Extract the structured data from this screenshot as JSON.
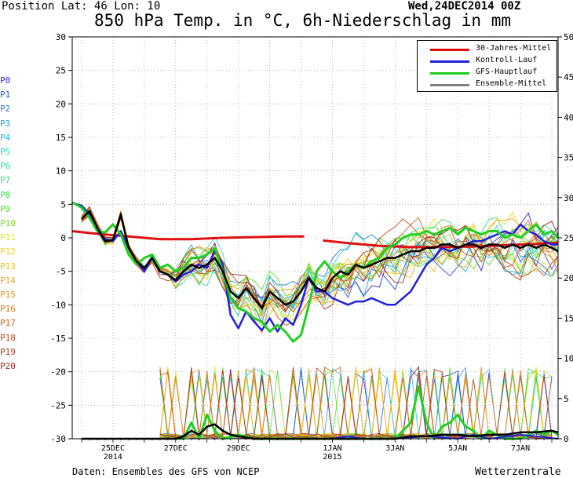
{
  "header": {
    "position": "Position  Lat: 46 Lon: 10",
    "datetime": "Wed,24DEC2014 00Z",
    "title": "850 hPa Temp. in °C, 6h-Niederschlag in mm"
  },
  "footer": {
    "source": "Daten: Ensembles des GFS von NCEP",
    "credit": "Wetterzentrale"
  },
  "members": [
    {
      "label": "P0",
      "color": "#3b1fd6"
    },
    {
      "label": "P1",
      "color": "#2a55e0"
    },
    {
      "label": "P2",
      "color": "#1f7fe0"
    },
    {
      "label": "P3",
      "color": "#1fa6e0"
    },
    {
      "label": "P4",
      "color": "#1fc2d8"
    },
    {
      "label": "P5",
      "color": "#2fd6c8"
    },
    {
      "label": "P6",
      "color": "#2fdca0"
    },
    {
      "label": "P7",
      "color": "#36e07a"
    },
    {
      "label": "P8",
      "color": "#3ee050"
    },
    {
      "label": "P9",
      "color": "#5be02a"
    },
    {
      "label": "P10",
      "color": "#7ee01c"
    },
    {
      "label": "P11",
      "color": "#e8e01c"
    },
    {
      "label": "P12",
      "color": "#f2d21c"
    },
    {
      "label": "P13",
      "color": "#f2bf1c"
    },
    {
      "label": "P14",
      "color": "#f0a81c"
    },
    {
      "label": "P15",
      "color": "#ee921c"
    },
    {
      "label": "P16",
      "color": "#e6781c"
    },
    {
      "label": "P17",
      "color": "#d8601c"
    },
    {
      "label": "P18",
      "color": "#c84a1c"
    },
    {
      "label": "P19",
      "color": "#b03a1c"
    },
    {
      "label": "P20",
      "color": "#a02a1c"
    }
  ],
  "chart_data": {
    "type": "line",
    "x_unit": "days since 24DEC2014 00Z",
    "xlim": [
      -0.3,
      15.2
    ],
    "ylabel_left": "°C",
    "ylabel_right": "mm",
    "ylim_left": [
      -30,
      30
    ],
    "ylim_right": [
      0,
      50
    ],
    "left_ticks": [
      30,
      25,
      20,
      15,
      10,
      5,
      0,
      -5,
      -10,
      -15,
      -20,
      -25,
      -30
    ],
    "right_ticks": [
      50,
      45,
      40,
      35,
      30,
      25,
      20,
      15,
      10,
      5,
      0
    ],
    "x_tick_labels": [
      {
        "day": 1,
        "line1": "25DEC",
        "line2": "2014"
      },
      {
        "day": 3,
        "line1": "27DEC",
        "line2": ""
      },
      {
        "day": 5,
        "line1": "29DEC",
        "line2": ""
      },
      {
        "day": 8,
        "line1": "1JAN",
        "line2": "2015"
      },
      {
        "day": 10,
        "line1": "3JAN",
        "line2": ""
      },
      {
        "day": 12,
        "line1": "5JAN",
        "line2": ""
      },
      {
        "day": 14,
        "line1": "7JAN",
        "line2": ""
      }
    ],
    "grid": true,
    "legend_position": "top-right",
    "legend": [
      {
        "name": "30-Jahres-Mittel",
        "color": "#e01010"
      },
      {
        "name": "Kontroll-Lauf",
        "color": "#2020e0"
      },
      {
        "name": "GFS-Hauptlauf",
        "color": "#20d020"
      },
      {
        "name": "Ensemble-Mittel",
        "color": "#808080"
      }
    ],
    "temperature_series": [
      {
        "name": "30-Jahres-Mittel",
        "color": "#e01010",
        "width": 3,
        "segments": [
          [
            [
              -0.3,
              1.0
            ],
            [
              0.5,
              0.6
            ],
            [
              1.5,
              0.2
            ],
            [
              2.5,
              -0.2
            ],
            [
              3.5,
              -0.2
            ],
            [
              4.5,
              0.0
            ],
            [
              5.5,
              0.1
            ],
            [
              6.5,
              0.2
            ],
            [
              7.1,
              0.2
            ]
          ],
          [
            [
              7.7,
              -0.4
            ],
            [
              8.5,
              -0.8
            ],
            [
              9.5,
              -1.2
            ],
            [
              10.5,
              -1.4
            ],
            [
              11.5,
              -1.4
            ],
            [
              12.5,
              -1.3
            ],
            [
              13.5,
              -1.1
            ],
            [
              14.5,
              -0.9
            ],
            [
              15.2,
              -0.7
            ]
          ]
        ]
      },
      {
        "name": "Kontroll-Lauf",
        "color": "#2020e0",
        "width": 2.5,
        "points": [
          [
            -0.3,
            5.2
          ],
          [
            0,
            4.8
          ],
          [
            0.25,
            3.5
          ],
          [
            0.5,
            1.0
          ],
          [
            0.75,
            -0.2
          ],
          [
            1,
            -0.5
          ],
          [
            1.25,
            1.0
          ],
          [
            1.5,
            -1.5
          ],
          [
            1.75,
            -3.5
          ],
          [
            2,
            -5
          ],
          [
            2.25,
            -3
          ],
          [
            2.5,
            -5
          ],
          [
            2.75,
            -5.5
          ],
          [
            3,
            -6.5
          ],
          [
            3.25,
            -5.5
          ],
          [
            3.5,
            -5
          ],
          [
            3.75,
            -4
          ],
          [
            4,
            -4.5
          ],
          [
            4.25,
            -2
          ],
          [
            4.5,
            -4
          ],
          [
            4.75,
            -11.5
          ],
          [
            5,
            -13.5
          ],
          [
            5.25,
            -11
          ],
          [
            5.5,
            -12.5
          ],
          [
            5.75,
            -13.8
          ],
          [
            6,
            -12
          ],
          [
            6.25,
            -14
          ],
          [
            6.5,
            -12
          ],
          [
            6.75,
            -13
          ],
          [
            7,
            -10
          ],
          [
            7.25,
            -6
          ],
          [
            7.5,
            -8
          ],
          [
            7.75,
            -8
          ],
          [
            8,
            -9
          ],
          [
            8.25,
            -9.5
          ],
          [
            8.5,
            -10
          ],
          [
            8.75,
            -9.5
          ],
          [
            9,
            -9.5
          ],
          [
            9.25,
            -9
          ],
          [
            9.5,
            -9.5
          ],
          [
            9.75,
            -10
          ],
          [
            10,
            -10
          ],
          [
            10.25,
            -9
          ],
          [
            10.5,
            -8
          ],
          [
            10.75,
            -6
          ],
          [
            11,
            -4
          ],
          [
            11.25,
            -3
          ],
          [
            11.5,
            -1.5
          ],
          [
            11.75,
            -2
          ],
          [
            12,
            -1.5
          ],
          [
            12.25,
            -1
          ],
          [
            12.5,
            -0.5
          ],
          [
            12.75,
            -0.5
          ],
          [
            13,
            0
          ],
          [
            13.25,
            0.5
          ],
          [
            13.5,
            1
          ],
          [
            13.75,
            0.5
          ],
          [
            14,
            2
          ],
          [
            14.25,
            1
          ],
          [
            14.5,
            0.5
          ],
          [
            14.75,
            -0.5
          ],
          [
            15,
            -1
          ],
          [
            15.2,
            -1
          ]
        ]
      },
      {
        "name": "GFS-Hauptlauf",
        "color": "#20d020",
        "width": 3,
        "points": [
          [
            -0.3,
            5.3
          ],
          [
            0,
            4.5
          ],
          [
            0.25,
            3.0
          ],
          [
            0.5,
            1.0
          ],
          [
            0.75,
            0.8
          ],
          [
            1,
            2.0
          ],
          [
            1.25,
            0.5
          ],
          [
            1.5,
            -2.5
          ],
          [
            1.75,
            -4
          ],
          [
            2,
            -3
          ],
          [
            2.25,
            -2.5
          ],
          [
            2.5,
            -4.5
          ],
          [
            2.75,
            -4
          ],
          [
            3,
            -5
          ],
          [
            3.25,
            -4.5
          ],
          [
            3.5,
            -3
          ],
          [
            3.75,
            -3
          ],
          [
            4,
            -2.5
          ],
          [
            4.25,
            -1.5
          ],
          [
            4.5,
            -5
          ],
          [
            4.75,
            -9
          ],
          [
            5,
            -10.5
          ],
          [
            5.25,
            -11
          ],
          [
            5.5,
            -12
          ],
          [
            5.75,
            -12.5
          ],
          [
            6,
            -14
          ],
          [
            6.25,
            -13
          ],
          [
            6.5,
            -14
          ],
          [
            6.75,
            -15.5
          ],
          [
            7,
            -14.5
          ],
          [
            7.25,
            -10
          ],
          [
            7.5,
            -5
          ],
          [
            7.75,
            -3.5
          ],
          [
            8,
            -5
          ],
          [
            8.25,
            -6
          ],
          [
            8.5,
            -5
          ],
          [
            8.75,
            -4
          ],
          [
            9,
            -4.5
          ],
          [
            9.25,
            -3.5
          ],
          [
            9.5,
            -3
          ],
          [
            9.75,
            -1.5
          ],
          [
            10,
            -1
          ],
          [
            10.25,
            0
          ],
          [
            10.5,
            0.5
          ],
          [
            10.75,
            0.5
          ],
          [
            11,
            1
          ],
          [
            11.25,
            0.5
          ],
          [
            11.5,
            1
          ],
          [
            11.75,
            1.5
          ],
          [
            12,
            0.5
          ],
          [
            12.25,
            1.5
          ],
          [
            12.5,
            1
          ],
          [
            12.75,
            0.5
          ],
          [
            13,
            1
          ],
          [
            13.25,
            1
          ],
          [
            13.5,
            0
          ],
          [
            13.75,
            0.5
          ],
          [
            14,
            0
          ],
          [
            14.25,
            1
          ],
          [
            14.5,
            2
          ],
          [
            14.75,
            0.5
          ],
          [
            15,
            1
          ],
          [
            15.2,
            0
          ]
        ]
      },
      {
        "name": "Ensemble-Mittel",
        "color": "#000000",
        "width": 2.5,
        "points": [
          [
            0,
            2.8
          ],
          [
            0.25,
            4.0
          ],
          [
            0.5,
            1.5
          ],
          [
            0.75,
            -0.5
          ],
          [
            1,
            -0.3
          ],
          [
            1.25,
            3.5
          ],
          [
            1.5,
            -1.5
          ],
          [
            1.75,
            -3.5
          ],
          [
            2,
            -4.5
          ],
          [
            2.25,
            -3
          ],
          [
            2.5,
            -5
          ],
          [
            2.75,
            -5.5
          ],
          [
            3,
            -6.3
          ],
          [
            3.25,
            -5
          ],
          [
            3.5,
            -4
          ],
          [
            3.75,
            -4.5
          ],
          [
            4,
            -4
          ],
          [
            4.25,
            -3
          ],
          [
            4.5,
            -5
          ],
          [
            4.75,
            -8
          ],
          [
            5,
            -9
          ],
          [
            5.25,
            -7.5
          ],
          [
            5.5,
            -9
          ],
          [
            5.75,
            -10.5
          ],
          [
            6,
            -8
          ],
          [
            6.25,
            -9
          ],
          [
            6.5,
            -10
          ],
          [
            6.75,
            -9.5
          ],
          [
            7,
            -8
          ],
          [
            7.25,
            -6
          ],
          [
            7.5,
            -7.5
          ],
          [
            7.75,
            -8
          ],
          [
            8,
            -6
          ],
          [
            8.25,
            -5
          ],
          [
            8.5,
            -5.5
          ],
          [
            8.75,
            -4
          ],
          [
            9,
            -4.5
          ],
          [
            9.25,
            -4
          ],
          [
            9.5,
            -3.5
          ],
          [
            9.75,
            -3
          ],
          [
            10,
            -3
          ],
          [
            10.25,
            -2.5
          ],
          [
            10.5,
            -2
          ],
          [
            10.75,
            -2
          ],
          [
            11,
            -1.5
          ],
          [
            11.25,
            -1.5
          ],
          [
            11.5,
            -1
          ],
          [
            11.75,
            -1
          ],
          [
            12,
            -1.5
          ],
          [
            12.25,
            -1
          ],
          [
            12.5,
            -1
          ],
          [
            12.75,
            -1.5
          ],
          [
            13,
            -1
          ],
          [
            13.25,
            -1
          ],
          [
            13.5,
            -1.5
          ],
          [
            13.75,
            -1
          ],
          [
            14,
            -1.5
          ],
          [
            14.25,
            -1
          ],
          [
            14.5,
            -1.5
          ],
          [
            14.75,
            -1
          ],
          [
            15,
            -1.5
          ],
          [
            15.2,
            -2
          ]
        ]
      }
    ],
    "precip_series": [
      {
        "name": "GFS-Hauptlauf",
        "color": "#20d020",
        "width": 3,
        "points": [
          [
            3,
            0
          ],
          [
            3.25,
            0
          ],
          [
            3.5,
            2
          ],
          [
            3.75,
            0
          ],
          [
            4,
            3
          ],
          [
            4.25,
            1
          ],
          [
            4.5,
            0
          ],
          [
            5,
            0.5
          ],
          [
            5.5,
            0
          ],
          [
            8,
            0
          ],
          [
            10,
            0
          ],
          [
            10.5,
            2
          ],
          [
            10.75,
            6.5
          ],
          [
            11,
            2
          ],
          [
            11.25,
            0
          ],
          [
            11.5,
            1.5
          ],
          [
            11.75,
            2
          ],
          [
            12,
            3
          ],
          [
            12.25,
            1.5
          ],
          [
            12.5,
            1
          ],
          [
            12.75,
            0
          ],
          [
            13,
            1
          ],
          [
            13.5,
            0
          ],
          [
            14,
            0
          ],
          [
            14.25,
            0.5
          ],
          [
            14.5,
            1
          ],
          [
            14.75,
            0.5
          ],
          [
            15,
            1
          ],
          [
            15.2,
            0.5
          ]
        ]
      },
      {
        "name": "Kontroll-Lauf",
        "color": "#2020e0",
        "width": 2,
        "points": [
          [
            8,
            0
          ],
          [
            8.5,
            0.3
          ],
          [
            9,
            0
          ],
          [
            10,
            0
          ],
          [
            11,
            0.3
          ],
          [
            12,
            0
          ],
          [
            12.5,
            0.5
          ],
          [
            13,
            0
          ],
          [
            14,
            0.5
          ],
          [
            15.2,
            0
          ]
        ]
      },
      {
        "name": "Ensemble-Mittel",
        "color": "#000000",
        "width": 2.5,
        "points": [
          [
            0,
            0
          ],
          [
            3,
            0
          ],
          [
            3.25,
            0.3
          ],
          [
            3.5,
            1
          ],
          [
            3.75,
            0.5
          ],
          [
            4,
            1.5
          ],
          [
            4.25,
            1.8
          ],
          [
            4.5,
            1
          ],
          [
            4.75,
            0.5
          ],
          [
            5,
            0.3
          ],
          [
            5.5,
            0
          ],
          [
            8,
            0
          ],
          [
            10,
            0
          ],
          [
            10.5,
            0.3
          ],
          [
            11,
            0.3
          ],
          [
            11.5,
            0.5
          ],
          [
            12,
            0.5
          ],
          [
            12.5,
            0.3
          ],
          [
            13,
            0.5
          ],
          [
            13.5,
            0.5
          ],
          [
            14,
            0.8
          ],
          [
            14.5,
            0.8
          ],
          [
            15,
            1
          ],
          [
            15.2,
            0.8
          ]
        ]
      }
    ]
  }
}
